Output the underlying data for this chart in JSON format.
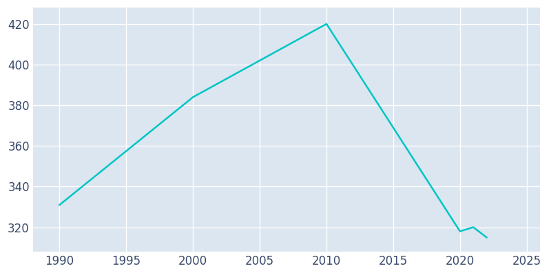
{
  "years": [
    1990,
    2000,
    2010,
    2020,
    2021,
    2022
  ],
  "population": [
    331,
    384,
    420,
    318,
    320,
    315
  ],
  "line_color": "#00C5C5",
  "plot_background_color": "#dce6f0",
  "figure_background_color": "#ffffff",
  "grid_color": "#ffffff",
  "text_color": "#3a4a6b",
  "xlim": [
    1988,
    2026
  ],
  "ylim": [
    308,
    428
  ],
  "xticks": [
    1990,
    1995,
    2000,
    2005,
    2010,
    2015,
    2020,
    2025
  ],
  "yticks": [
    320,
    340,
    360,
    380,
    400,
    420
  ],
  "figsize": [
    8.0,
    4.0
  ],
  "dpi": 100,
  "linewidth": 1.8,
  "tick_labelsize": 12
}
